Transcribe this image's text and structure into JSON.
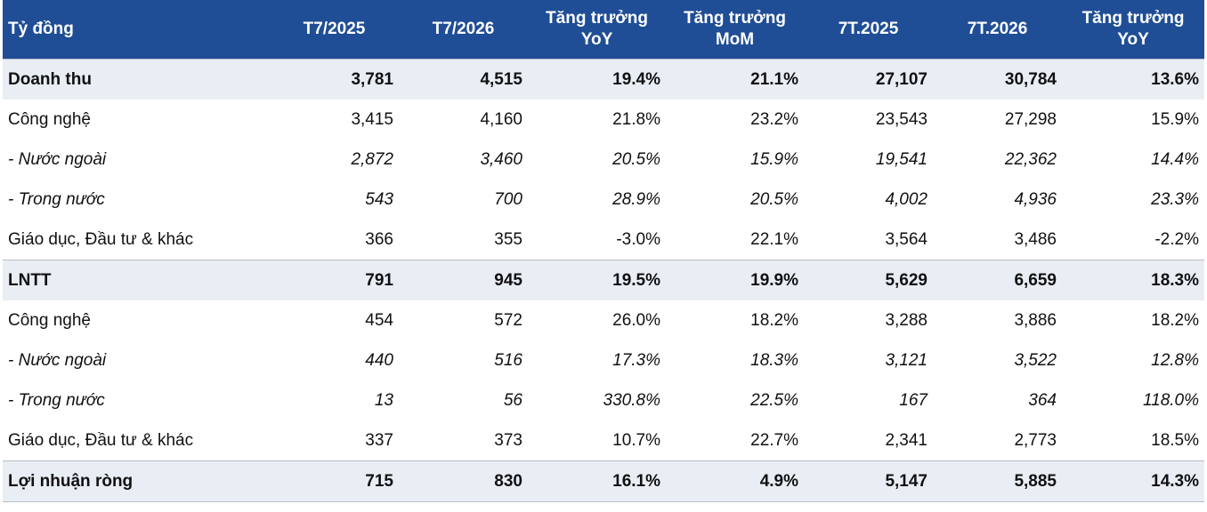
{
  "table": {
    "header": [
      "Tỷ đồng",
      "T7/2025",
      "T7/2026",
      "Tăng trưởng\nYoY",
      "Tăng trưởng\nMoM",
      "7T.2025",
      "7T.2026",
      "Tăng trưởng\nYoY"
    ],
    "rows": [
      [
        "Doanh thu",
        "3,781",
        "4,515",
        "19.4%",
        "21.1%",
        "27,107",
        "30,784",
        "13.6%"
      ],
      [
        "Công nghệ",
        "3,415",
        "4,160",
        "21.8%",
        "23.2%",
        "23,543",
        "27,298",
        "15.9%"
      ],
      [
        "- Nước ngoài",
        "2,872",
        "3,460",
        "20.5%",
        "15.9%",
        "19,541",
        "22,362",
        "14.4%"
      ],
      [
        "- Trong nước",
        "543",
        "700",
        "28.9%",
        "20.5%",
        "4,002",
        "4,936",
        "23.3%"
      ],
      [
        "Giáo dục, Đầu tư & khác",
        "366",
        "355",
        "-3.0%",
        "22.1%",
        "3,564",
        "3,486",
        "-2.2%"
      ],
      [
        "LNTT",
        "791",
        "945",
        "19.5%",
        "19.9%",
        "5,629",
        "6,659",
        "18.3%"
      ],
      [
        "Công nghệ",
        "454",
        "572",
        "26.0%",
        "18.2%",
        "3,288",
        "3,886",
        "18.2%"
      ],
      [
        "- Nước ngoài",
        "440",
        "516",
        "17.3%",
        "18.3%",
        "3,121",
        "3,522",
        "12.8%"
      ],
      [
        "- Trong nước",
        "13",
        "56",
        "330.8%",
        "22.5%",
        "167",
        "364",
        "118.0%"
      ],
      [
        "Giáo dục, Đầu tư & khác",
        "337",
        "373",
        "10.7%",
        "22.7%",
        "2,341",
        "2,773",
        "18.5%"
      ],
      [
        "Lợi nhuận ròng",
        "715",
        "830",
        "16.1%",
        "4.9%",
        "5,147",
        "5,885",
        "14.3%"
      ]
    ]
  }
}
